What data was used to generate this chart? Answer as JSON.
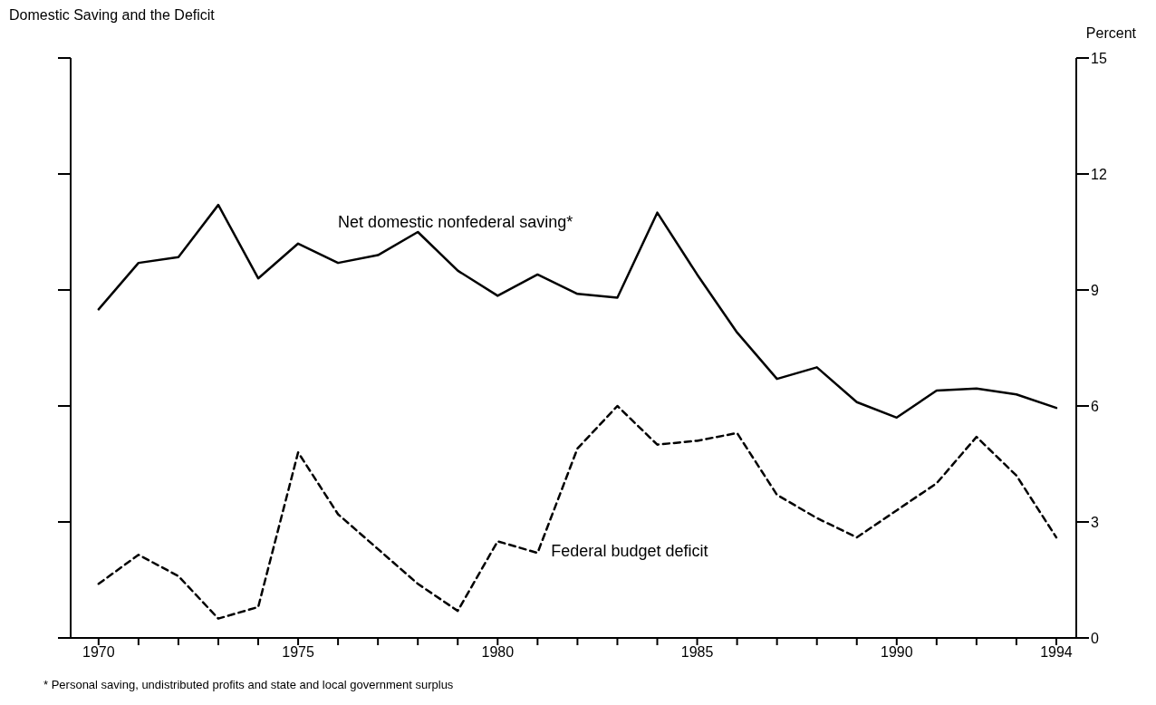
{
  "chart_data": {
    "type": "line",
    "title": "Domestic Saving and the Deficit",
    "ylabel": "Percent",
    "annotations": [
      "* Personal saving, undistributed profits  and state and local government surplus"
    ],
    "x": [
      1970,
      1971,
      1972,
      1973,
      1974,
      1975,
      1976,
      1977,
      1978,
      1979,
      1980,
      1981,
      1982,
      1983,
      1984,
      1985,
      1986,
      1987,
      1988,
      1989,
      1990,
      1991,
      1992,
      1993,
      1994
    ],
    "series": [
      {
        "name": "Net domestic nonfederal saving*",
        "color": "#000000",
        "line_style": "solid",
        "values": [
          8.5,
          9.7,
          9.85,
          11.2,
          9.3,
          10.2,
          9.7,
          9.9,
          10.5,
          9.5,
          8.85,
          9.4,
          8.9,
          8.8,
          11.0,
          9.4,
          7.9,
          6.7,
          7.0,
          6.1,
          5.7,
          6.4,
          6.45,
          6.3,
          5.95
        ]
      },
      {
        "name": "Federal budget deficit",
        "color": "#000000",
        "line_style": "dashed",
        "values": [
          1.4,
          2.15,
          1.6,
          0.5,
          0.8,
          4.8,
          3.2,
          2.3,
          1.4,
          0.7,
          2.5,
          2.2,
          4.9,
          6.0,
          5.0,
          5.1,
          5.3,
          3.7,
          3.1,
          2.6,
          3.3,
          4.0,
          5.2,
          4.2,
          2.6
        ]
      }
    ],
    "xlim": [
      1969.3,
      1994.5
    ],
    "xticks": [
      1970,
      {
        "value": 1971,
        "label": null
      },
      {
        "value": 1972,
        "label": null
      },
      {
        "value": 1973,
        "label": null
      },
      {
        "value": 1974,
        "label": null
      },
      1975,
      {
        "value": 1976,
        "label": null
      },
      {
        "value": 1977,
        "label": null
      },
      {
        "value": 1978,
        "label": null
      },
      {
        "value": 1979,
        "label": null
      },
      1980,
      {
        "value": 1981,
        "label": null
      },
      {
        "value": 1982,
        "label": null
      },
      {
        "value": 1983,
        "label": null
      },
      {
        "value": 1984,
        "label": null
      },
      1985,
      {
        "value": 1986,
        "label": null
      },
      {
        "value": 1987,
        "label": null
      },
      {
        "value": 1988,
        "label": null
      },
      {
        "value": 1989,
        "label": null
      },
      1990,
      {
        "value": 1991,
        "label": null
      },
      {
        "value": 1992,
        "label": null
      },
      {
        "value": 1993,
        "label": null
      },
      1994
    ],
    "ylim": [
      0,
      15
    ],
    "yticks": [
      0,
      3,
      6,
      9,
      12,
      15
    ],
    "grid": false,
    "legend": false,
    "marker": "none"
  }
}
